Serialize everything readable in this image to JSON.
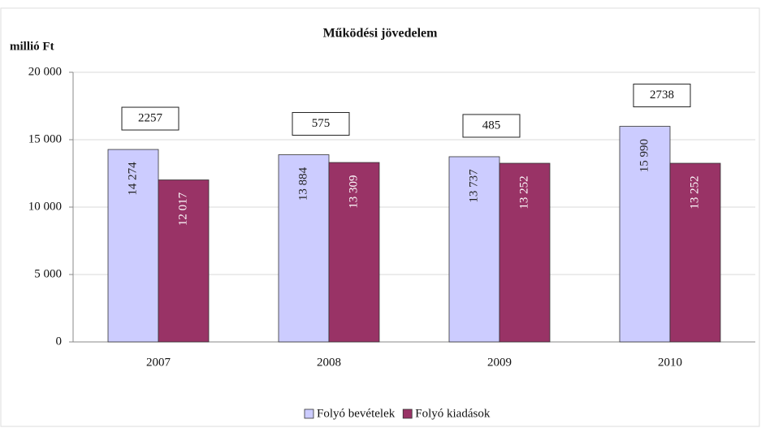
{
  "chart_data": {
    "type": "bar",
    "title": "Működési jövedelem",
    "y_label": "millió Ft",
    "categories": [
      "2007",
      "2008",
      "2009",
      "2010"
    ],
    "series": [
      {
        "name": "Folyó bevételek",
        "color": "#ccccff",
        "values": [
          14274,
          13884,
          13737,
          15990
        ],
        "value_labels": [
          "14 274",
          "13 884",
          "13 737",
          "15 990"
        ]
      },
      {
        "name": "Folyó kiadások",
        "color": "#993366",
        "values": [
          12017,
          13309,
          13252,
          13252
        ],
        "value_labels": [
          "12 017",
          "13 309",
          "13 252",
          "13 252"
        ]
      }
    ],
    "annotations": [
      2257,
      575,
      485,
      2738
    ],
    "ylim": [
      0,
      20000
    ],
    "yticks": [
      0,
      {
        "value": 5000,
        "label": "5 000"
      },
      {
        "value": 10000,
        "label": "10 000"
      },
      {
        "value": 15000,
        "label": "15 000"
      },
      {
        "value": 20000,
        "label": "20 000"
      }
    ],
    "grid": true,
    "legend": "bottom"
  }
}
